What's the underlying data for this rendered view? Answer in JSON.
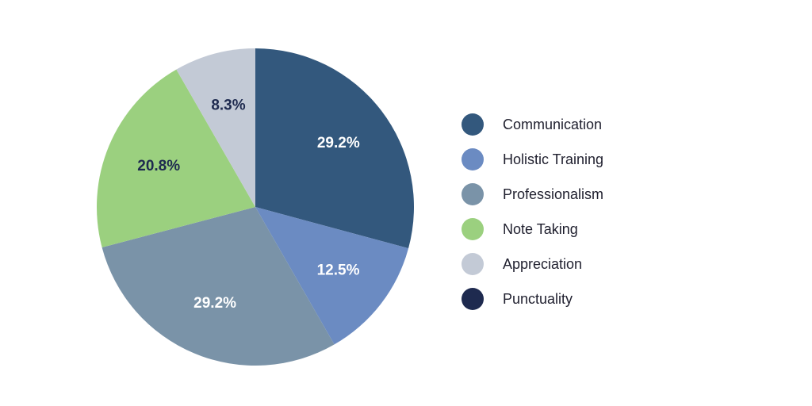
{
  "chart_data": {
    "type": "pie",
    "title": "",
    "slices": [
      {
        "label": "Communication",
        "value": 29.2,
        "display": "29.2%",
        "color": "#33587d",
        "label_color": "#ffffff"
      },
      {
        "label": "Holistic Training",
        "value": 12.5,
        "display": "12.5%",
        "color": "#6b8bc2",
        "label_color": "#ffffff"
      },
      {
        "label": "Professionalism",
        "value": 29.2,
        "display": "29.2%",
        "color": "#7a93a8",
        "label_color": "#ffffff"
      },
      {
        "label": "Note Taking",
        "value": 20.8,
        "display": "20.8%",
        "color": "#9bd07f",
        "label_color": "#1e2a4f"
      },
      {
        "label": "Appreciation",
        "value": 8.3,
        "display": "8.3%",
        "color": "#c3cad6",
        "label_color": "#1e2a4f"
      },
      {
        "label": "Punctuality",
        "value": 0,
        "display": "",
        "color": "#1e2a4f",
        "label_color": "#ffffff"
      }
    ],
    "start_angle": "12 o'clock",
    "direction": "clockwise",
    "legend_position": "right"
  }
}
